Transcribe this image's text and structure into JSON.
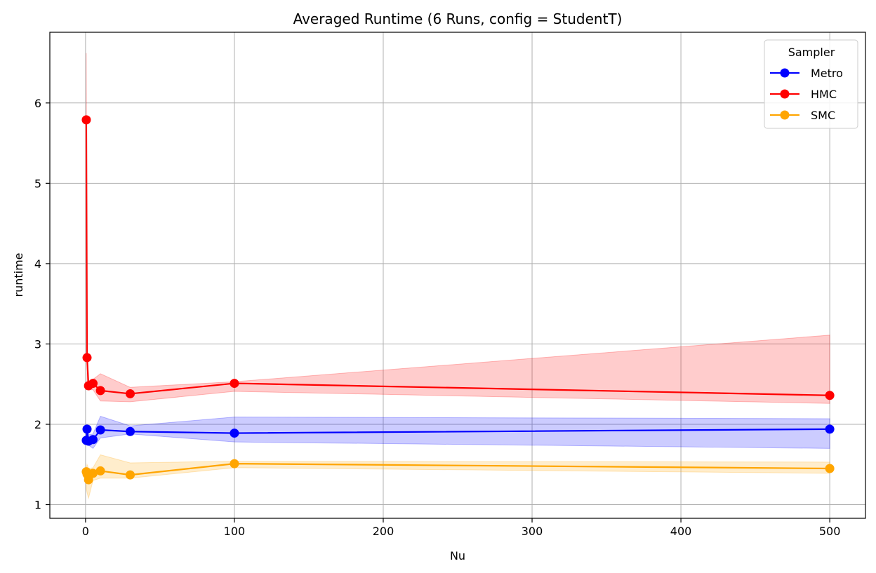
{
  "chart_data": {
    "type": "line",
    "title": "Averaged Runtime (6 Runs, config = StudentT)",
    "xlabel": "Nu",
    "ylabel": "runtime",
    "xlim": [
      -24,
      524
    ],
    "ylim": [
      0.83,
      6.88
    ],
    "xticks": [
      0,
      100,
      200,
      300,
      400,
      500
    ],
    "yticks": [
      1,
      2,
      3,
      4,
      5,
      6
    ],
    "grid": true,
    "legend": {
      "title": "Sampler",
      "placement": "top-right"
    },
    "x": [
      0.5,
      1,
      2,
      5,
      10,
      30,
      100,
      500
    ],
    "series": [
      {
        "name": "Metro",
        "color": "#0000ff",
        "values": [
          1.8,
          1.94,
          1.79,
          1.81,
          1.93,
          1.91,
          1.89,
          1.94
        ],
        "lower": [
          1.78,
          1.78,
          1.74,
          1.7,
          1.83,
          1.88,
          1.78,
          1.7
        ],
        "upper": [
          1.97,
          1.97,
          1.87,
          1.88,
          2.1,
          1.98,
          2.09,
          2.07
        ]
      },
      {
        "name": "HMC",
        "color": "#ff0000",
        "values": [
          5.79,
          2.83,
          2.48,
          2.51,
          2.42,
          2.38,
          2.51,
          2.36
        ],
        "lower": [
          4.8,
          2.5,
          2.43,
          2.43,
          2.29,
          2.28,
          2.41,
          2.26
        ],
        "upper": [
          6.62,
          3.1,
          2.52,
          2.56,
          2.63,
          2.46,
          2.53,
          3.11
        ]
      },
      {
        "name": "SMC",
        "color": "#ffa500",
        "values": [
          1.41,
          1.38,
          1.31,
          1.39,
          1.42,
          1.37,
          1.51,
          1.45
        ],
        "lower": [
          1.2,
          1.15,
          1.08,
          1.3,
          1.33,
          1.33,
          1.46,
          1.39
        ],
        "upper": [
          1.45,
          1.5,
          1.45,
          1.46,
          1.62,
          1.52,
          1.54,
          1.53
        ]
      }
    ]
  }
}
